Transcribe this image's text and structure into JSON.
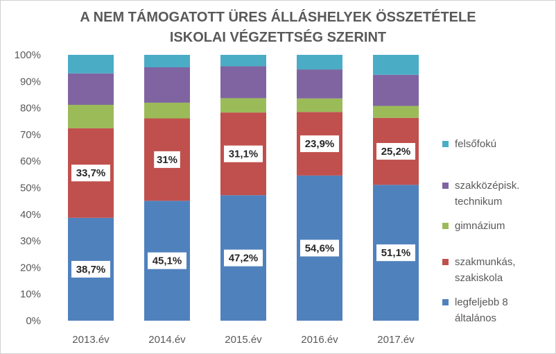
{
  "chart_data": {
    "type": "bar",
    "stacked": true,
    "normalized": true,
    "title": [
      "A NEM TÁMOGATOTT ÜRES ÁLLÁSHELYEK ÖSSZETÉTELE",
      "ISKOLAI VÉGZETTSÉG SZERINT"
    ],
    "categories": [
      "2013.év",
      "2014.év",
      "2015.év",
      "2016.év",
      "2017.év"
    ],
    "ylim": [
      0,
      100
    ],
    "yticks": [
      "0%",
      "10%",
      "20%",
      "30%",
      "40%",
      "50%",
      "60%",
      "70%",
      "80%",
      "90%",
      "100%"
    ],
    "grid": false,
    "legend_position": "right",
    "series": [
      {
        "name": "legfeljebb 8 általános",
        "color": "#4f81bd",
        "values": [
          38.7,
          45.1,
          47.2,
          54.6,
          51.1
        ],
        "labels": [
          "38,7%",
          "45,1%",
          "47,2%",
          "54,6%",
          "51,1%"
        ]
      },
      {
        "name": "szakmunkás, szakiskola",
        "color": "#c0504d",
        "values": [
          33.7,
          31.0,
          31.1,
          23.9,
          25.2
        ],
        "labels": [
          "33,7%",
          "31%",
          "31,1%",
          "23,9%",
          "25,2%"
        ]
      },
      {
        "name": "gimnázium",
        "color": "#9bbb59",
        "values": [
          8.8,
          5.9,
          5.4,
          5.1,
          4.5
        ]
      },
      {
        "name": "szakközépisk. technikum",
        "color": "#8064a2",
        "values": [
          11.8,
          13.3,
          12.0,
          10.9,
          11.7
        ]
      },
      {
        "name": "felsőfokú",
        "color": "#4bacc6",
        "values": [
          7.0,
          4.7,
          4.3,
          5.5,
          7.5
        ]
      }
    ],
    "legend_order": [
      "felsőfokú",
      "szakközépisk.\ntechnikum",
      "gimnázium",
      "szakmunkás,\nszakiskola",
      "legfeljebb 8\náltalános"
    ]
  }
}
